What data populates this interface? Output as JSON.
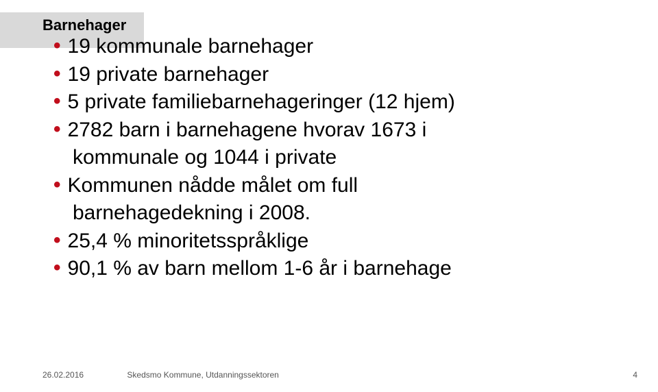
{
  "title": "Barnehager",
  "bullets": [
    {
      "lines": [
        "19 kommunale barnehager"
      ]
    },
    {
      "lines": [
        "19 private barnehager"
      ]
    },
    {
      "lines": [
        "5 private familiebarnehageringer (12 hjem)"
      ]
    },
    {
      "lines": [
        "2782 barn i barnehagene hvorav 1673 i",
        "kommunale og 1044 i private"
      ]
    },
    {
      "lines": [
        "Kommunen nådde målet om full",
        "barnehagedekning i 2008."
      ]
    },
    {
      "lines": [
        "25,4 % minoritetsspråklige"
      ]
    },
    {
      "lines": [
        "90,1 % av barn mellom 1-6 år i barnehage"
      ]
    }
  ],
  "footer": {
    "date": "26.02.2016",
    "org": "Skedsmo Kommune, Utdanningssektoren"
  },
  "page_number": "4",
  "colors": {
    "bullet": "#c10e1c",
    "titlebar_bg": "#d9d9d9",
    "text": "#000000",
    "footer": "#555555"
  },
  "typography": {
    "title_fontsize": 22,
    "body_fontsize": 30,
    "footer_fontsize": 12
  }
}
